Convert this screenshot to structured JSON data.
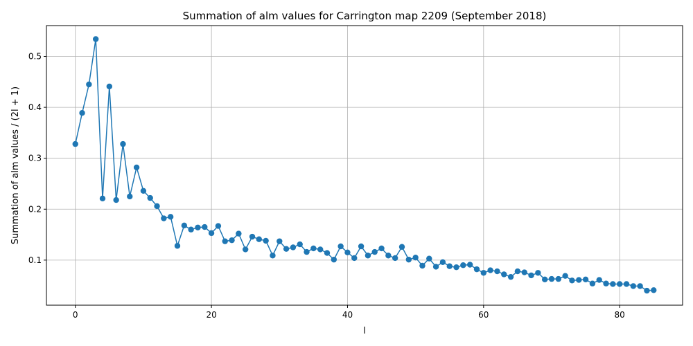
{
  "chart_data": {
    "type": "line",
    "title": "Summation of alm values for Carrington map 2209 (September 2018)",
    "xlabel": "l",
    "ylabel": "Summation of alm values / (2l + 1)",
    "xlim": [
      -4.25,
      89.25
    ],
    "ylim": [
      0.0115,
      0.5605
    ],
    "xticks": [
      0,
      20,
      40,
      60,
      80
    ],
    "yticks": [
      0.1,
      0.2,
      0.3,
      0.4,
      0.5
    ],
    "grid": true,
    "marker": "circle",
    "color": "#1f77b4",
    "series": [
      {
        "x": [
          0,
          1,
          2,
          3,
          4,
          5,
          6,
          7,
          8,
          9,
          10,
          11,
          12,
          13,
          14,
          15,
          16,
          17,
          18,
          19,
          20,
          21,
          22,
          23,
          24,
          25,
          26,
          27,
          28,
          29,
          30,
          31,
          32,
          33,
          34,
          35,
          36,
          37,
          38,
          39,
          40,
          41,
          42,
          43,
          44,
          45,
          46,
          47,
          48,
          49,
          50,
          51,
          52,
          53,
          54,
          55,
          56,
          57,
          58,
          59,
          60,
          61,
          62,
          63,
          64,
          65,
          66,
          67,
          68,
          69,
          70,
          71,
          72,
          73,
          74,
          75,
          76,
          77,
          78,
          79,
          80,
          81,
          82,
          83,
          84,
          85
        ],
        "values": [
          0.328,
          0.389,
          0.445,
          0.534,
          0.221,
          0.441,
          0.218,
          0.328,
          0.225,
          0.282,
          0.236,
          0.222,
          0.206,
          0.182,
          0.185,
          0.128,
          0.168,
          0.16,
          0.164,
          0.165,
          0.153,
          0.167,
          0.137,
          0.139,
          0.152,
          0.121,
          0.146,
          0.141,
          0.138,
          0.109,
          0.137,
          0.122,
          0.125,
          0.131,
          0.116,
          0.123,
          0.121,
          0.114,
          0.101,
          0.127,
          0.115,
          0.104,
          0.127,
          0.109,
          0.116,
          0.123,
          0.109,
          0.104,
          0.126,
          0.101,
          0.105,
          0.089,
          0.103,
          0.087,
          0.096,
          0.088,
          0.086,
          0.09,
          0.091,
          0.082,
          0.075,
          0.08,
          0.078,
          0.072,
          0.067,
          0.078,
          0.076,
          0.07,
          0.075,
          0.062,
          0.063,
          0.063,
          0.069,
          0.06,
          0.061,
          0.062,
          0.054,
          0.061,
          0.054,
          0.053,
          0.053,
          0.053,
          0.049,
          0.049,
          0.04,
          0.041
        ]
      }
    ]
  }
}
